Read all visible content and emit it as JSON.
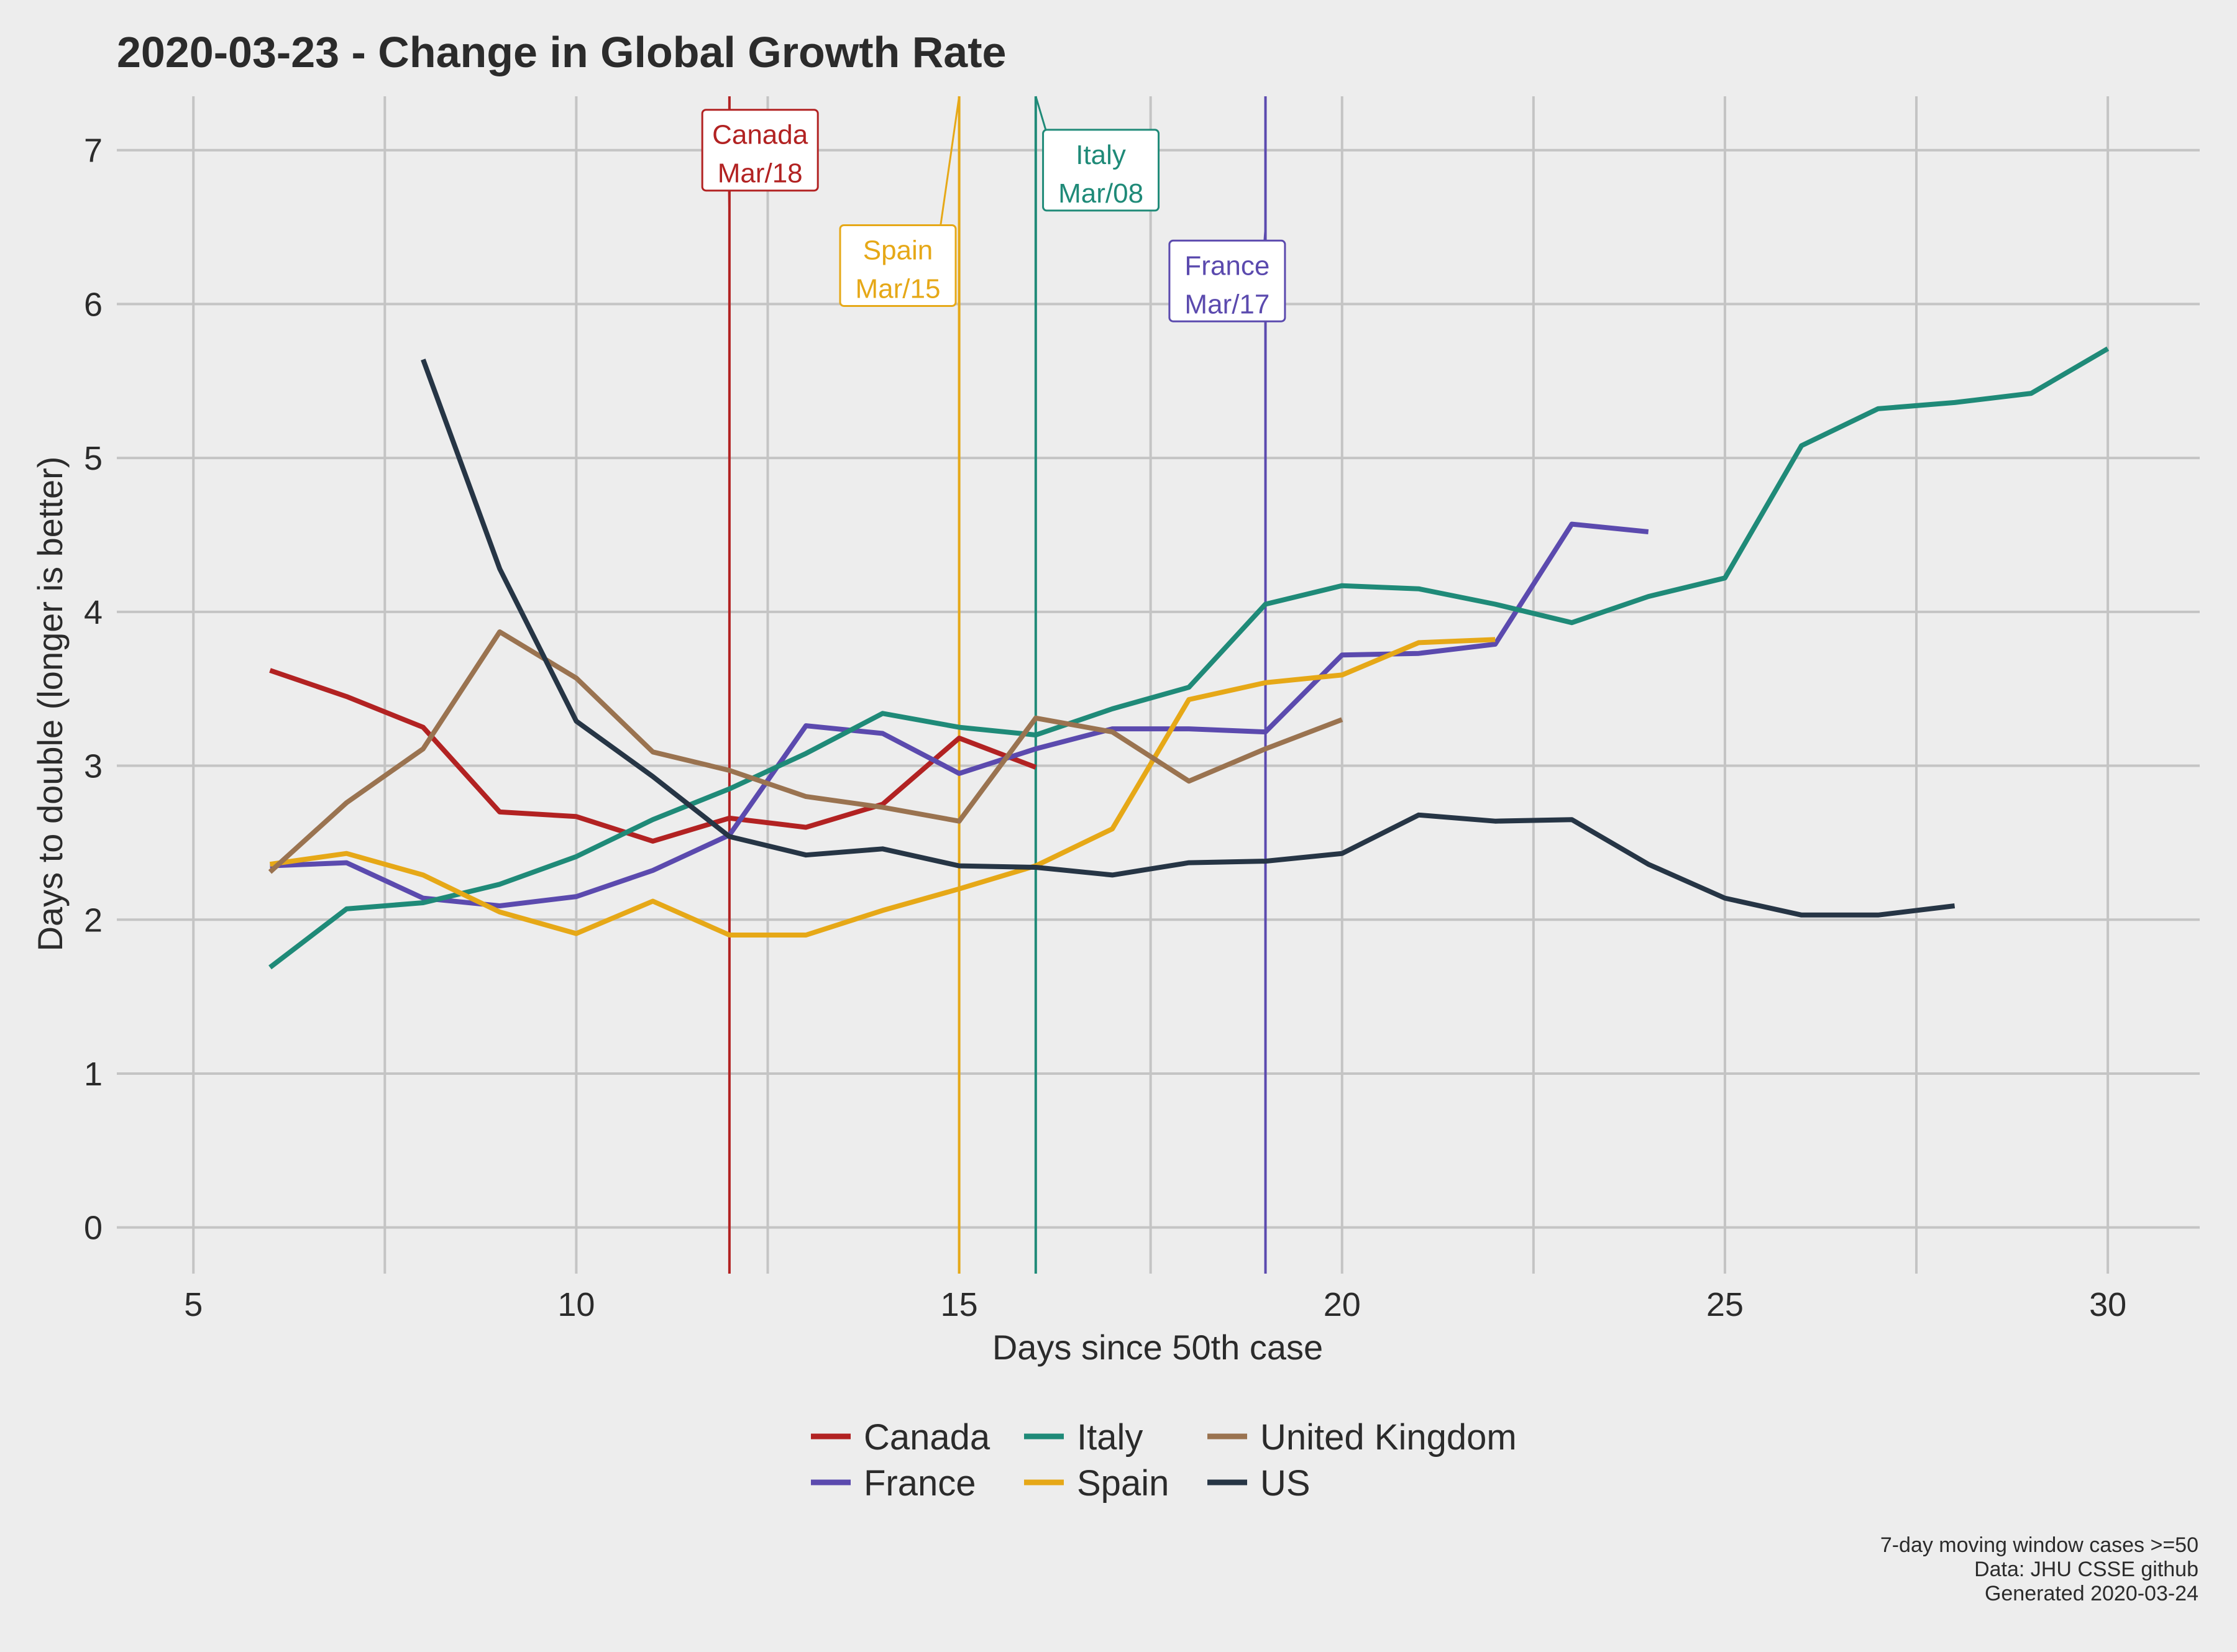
{
  "chart_data": {
    "type": "line",
    "title": "2020-03-23  - Change in Global Growth Rate",
    "xlabel": "Days since 50th case",
    "ylabel": "Days to double (longer is better)",
    "xlim": [
      4,
      31.2
    ],
    "ylim": [
      -0.3,
      7.35
    ],
    "xticks": [
      5,
      10,
      15,
      20,
      25,
      30
    ],
    "yticks": [
      0,
      1,
      2,
      3,
      4,
      5,
      6,
      7
    ],
    "grid": true,
    "legend_position": "bottom",
    "series": [
      {
        "name": "Canada",
        "color": "#b22222",
        "x": [
          6,
          7,
          8,
          9,
          10,
          11,
          12,
          13,
          14,
          15,
          16
        ],
        "y": [
          3.62,
          3.45,
          3.25,
          2.7,
          2.67,
          2.51,
          2.66,
          2.6,
          2.75,
          3.18,
          2.99
        ]
      },
      {
        "name": "France",
        "color": "#5b4aae",
        "x": [
          6,
          7,
          8,
          9,
          10,
          11,
          12,
          13,
          14,
          15,
          16,
          17,
          18,
          19,
          20,
          21,
          22,
          23,
          24
        ],
        "y": [
          2.35,
          2.37,
          2.14,
          2.09,
          2.15,
          2.32,
          2.55,
          3.26,
          3.21,
          2.95,
          3.11,
          3.24,
          3.24,
          3.22,
          3.72,
          3.73,
          3.79,
          4.57,
          4.52
        ]
      },
      {
        "name": "Italy",
        "color": "#1f8a78",
        "x": [
          6,
          7,
          8,
          9,
          10,
          11,
          12,
          13,
          14,
          15,
          16,
          17,
          18,
          19,
          20,
          21,
          22,
          23,
          24,
          25,
          26,
          27,
          28,
          29,
          30
        ],
        "y": [
          1.69,
          2.07,
          2.11,
          2.23,
          2.41,
          2.65,
          2.85,
          3.08,
          3.34,
          3.25,
          3.2,
          3.37,
          3.51,
          4.05,
          4.17,
          4.15,
          4.05,
          3.93,
          4.1,
          4.22,
          5.08,
          5.32,
          5.36,
          5.42,
          5.71
        ]
      },
      {
        "name": "Spain",
        "color": "#e6a817",
        "x": [
          6,
          7,
          8,
          9,
          10,
          11,
          12,
          13,
          14,
          15,
          16,
          17,
          18,
          19,
          20,
          21,
          22
        ],
        "y": [
          2.36,
          2.43,
          2.29,
          2.05,
          1.91,
          2.12,
          1.9,
          1.9,
          2.06,
          2.2,
          2.35,
          2.59,
          3.43,
          3.54,
          3.59,
          3.8,
          3.82
        ]
      },
      {
        "name": "United Kingdom",
        "color": "#9a7350",
        "x": [
          6,
          7,
          8,
          9,
          10,
          11,
          12,
          13,
          14,
          15,
          16,
          17,
          18,
          19,
          20
        ],
        "y": [
          2.31,
          2.76,
          3.11,
          3.87,
          3.57,
          3.09,
          2.97,
          2.8,
          2.73,
          2.64,
          3.31,
          3.22,
          2.9,
          3.11,
          3.3
        ]
      },
      {
        "name": "US",
        "color": "#263545",
        "x": [
          8,
          9,
          10,
          11,
          12,
          13,
          14,
          15,
          16,
          17,
          18,
          19,
          20,
          21,
          22,
          23,
          24,
          25,
          26,
          27,
          28
        ],
        "y": [
          5.64,
          4.28,
          3.29,
          2.93,
          2.54,
          2.42,
          2.46,
          2.35,
          2.34,
          2.29,
          2.37,
          2.38,
          2.43,
          2.68,
          2.64,
          2.65,
          2.36,
          2.14,
          2.03,
          2.03,
          2.09
        ]
      }
    ],
    "annotations": [
      {
        "country": "Canada",
        "date": "Mar/18",
        "x": 12,
        "color": "#b22222",
        "label_x": 12.4,
        "label_y": 7.0,
        "line_top": 6.5
      },
      {
        "country": "Spain",
        "date": "Mar/15",
        "x": 15,
        "color": "#e6a817",
        "label_x": 14.2,
        "label_y": 6.25,
        "line_top": 7.35
      },
      {
        "country": "Italy",
        "date": "Mar/08",
        "x": 16,
        "color": "#1f8a78",
        "label_x": 16.85,
        "label_y": 6.87,
        "line_top": 7.35
      },
      {
        "country": "France",
        "date": "Mar/17",
        "x": 19,
        "color": "#5b4aae",
        "label_x": 18.5,
        "label_y": 6.15,
        "line_top": 6.5
      }
    ],
    "caption": [
      "7-day moving window cases >=50",
      "Data: JHU CSSE github",
      "Generated 2020-03-24"
    ]
  }
}
